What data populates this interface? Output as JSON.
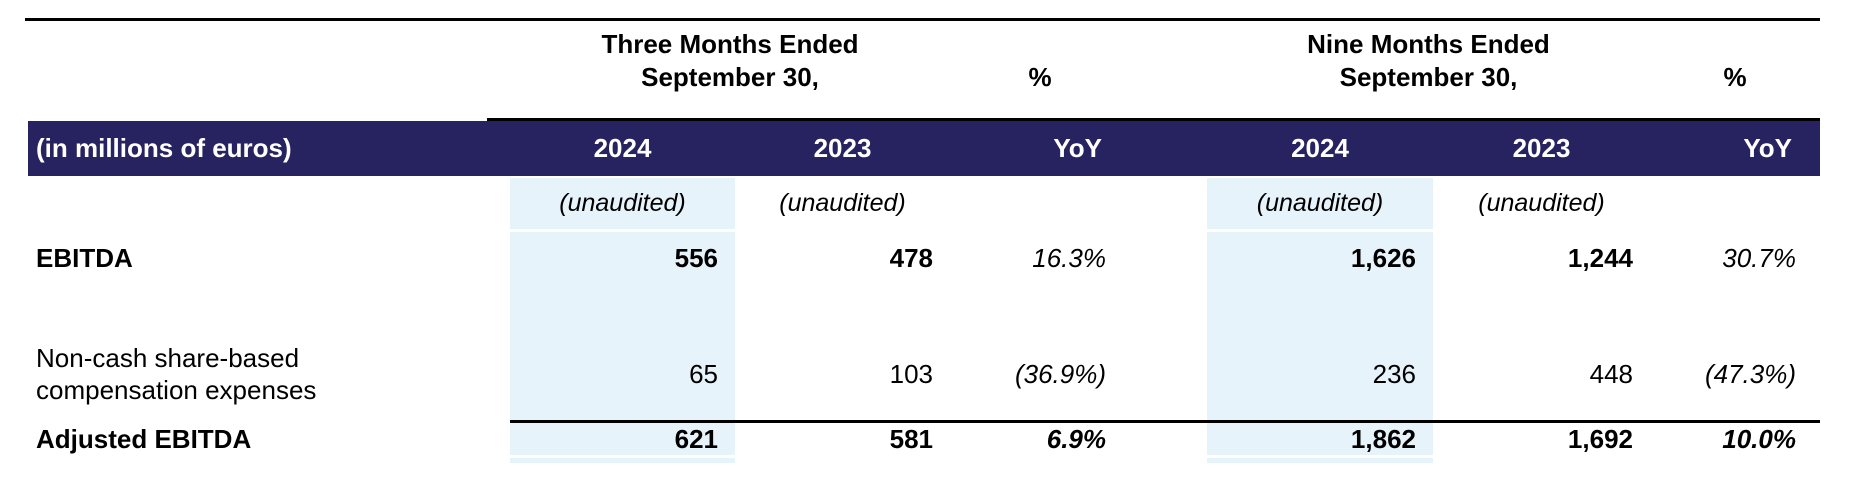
{
  "table": {
    "units_label": "(in millions of euros)",
    "column_groups": {
      "three_months": {
        "title_line1": "Three Months Ended",
        "title_line2": "September 30,",
        "pct": "%"
      },
      "nine_months": {
        "title_line1": "Nine Months Ended",
        "title_line2": "September 30,",
        "pct": "%"
      }
    },
    "header": {
      "tm_2024": "2024",
      "tm_2023": "2023",
      "tm_yoy": "YoY",
      "nm_2024": "2024",
      "nm_2023": "2023",
      "nm_yoy": "YoY"
    },
    "unaudited_row": {
      "tm_2024": "(unaudited)",
      "tm_2023": "(unaudited)",
      "nm_2024": "(unaudited)",
      "nm_2023": "(unaudited)"
    },
    "rows": [
      {
        "label": "EBITDA",
        "tm_2024": "556",
        "tm_2023": "478",
        "tm_yoy": "16.3%",
        "nm_2024": "1,626",
        "nm_2023": "1,244",
        "nm_yoy": "30.7%"
      },
      {
        "label": "Non-cash share-based compensation expenses",
        "tm_2024": "65",
        "tm_2023": "103",
        "tm_yoy": "(36.9%)",
        "nm_2024": "236",
        "nm_2023": "448",
        "nm_yoy": "(47.3%)"
      },
      {
        "label": "Adjusted EBITDA",
        "tm_2024": "621",
        "tm_2023": "581",
        "tm_yoy": "6.9%",
        "nm_2024": "1,862",
        "nm_2023": "1,692",
        "nm_yoy": "10.0%"
      }
    ],
    "colors": {
      "header_bg": "#272260",
      "highlight_bg": "#E7F3FA"
    }
  }
}
